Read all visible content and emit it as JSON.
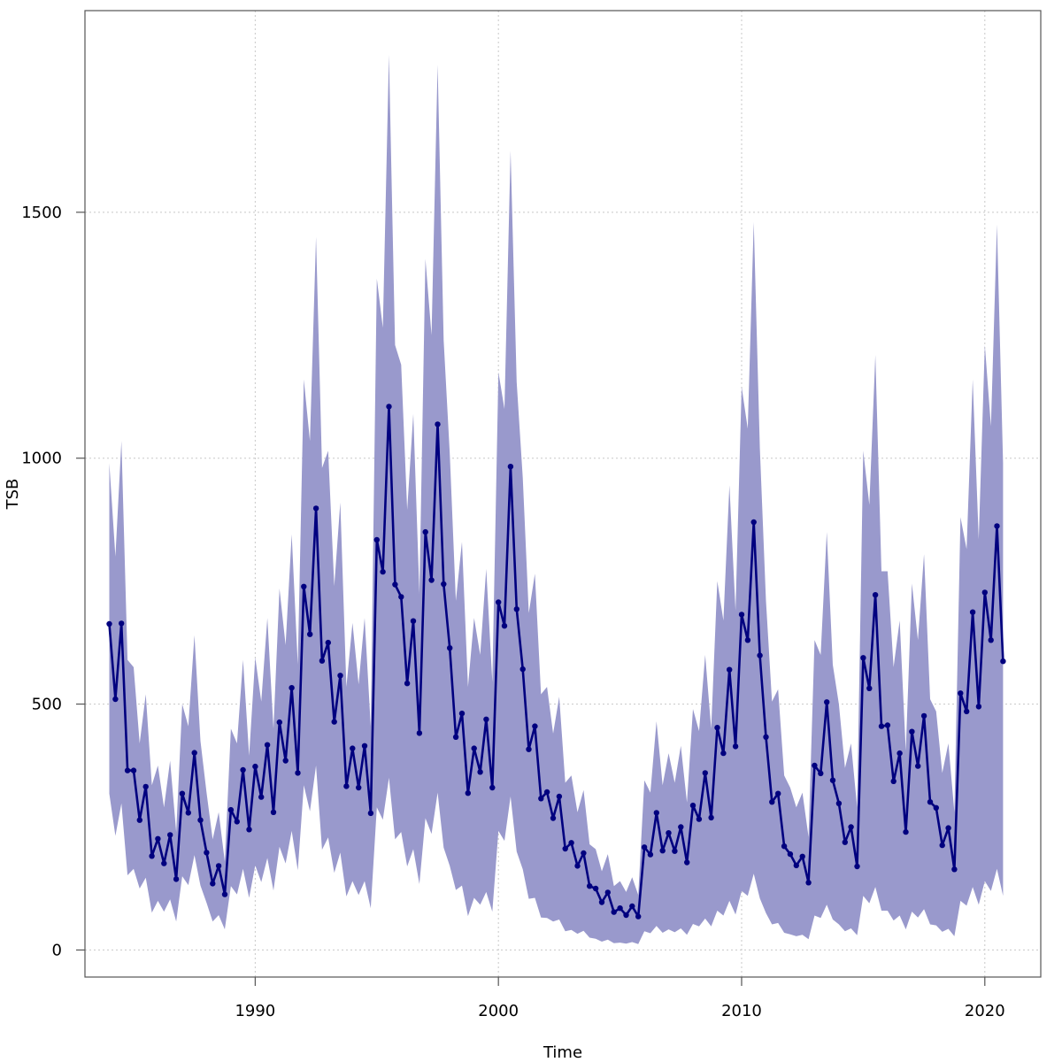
{
  "chart_data": {
    "type": "line",
    "xlabel": "Time",
    "ylabel": "TSB",
    "xlim": [
      1983.0,
      2022.3
    ],
    "ylim": [
      -55,
      1910
    ],
    "x_ticks": [
      1990,
      2000,
      2010,
      2020
    ],
    "y_ticks": [
      0,
      500,
      1000,
      1500
    ],
    "x_tick_labels": [
      "1990",
      "2000",
      "2010",
      "2020"
    ],
    "y_tick_labels": [
      "0",
      "500",
      "1000",
      "1500"
    ],
    "grid": true,
    "colors": {
      "line": "#00007f",
      "band": "#9999cc",
      "grid": "#c8c8c8",
      "axis": "#555555"
    },
    "series": [
      {
        "x": [
          1984.0,
          1984.25,
          1984.5,
          1984.75,
          1985.0,
          1985.25,
          1985.5,
          1985.75,
          1986.0,
          1986.25,
          1986.5,
          1986.75,
          1987.0,
          1987.25,
          1987.5,
          1987.75,
          1988.0,
          1988.25,
          1988.5,
          1988.75,
          1989.0,
          1989.25,
          1989.5,
          1989.75,
          1990.0,
          1990.25,
          1990.5,
          1990.75,
          1991.0,
          1991.25,
          1991.5,
          1991.75,
          1992.0,
          1992.25,
          1992.5,
          1992.75,
          1993.0,
          1993.25,
          1993.5,
          1993.75,
          1994.0,
          1994.25,
          1994.5,
          1994.75,
          1995.0,
          1995.25,
          1995.5,
          1995.75,
          1996.0,
          1996.25,
          1996.5,
          1996.75,
          1997.0,
          1997.25,
          1997.5,
          1997.75,
          1998.0,
          1998.25,
          1998.5,
          1998.75,
          1999.0,
          1999.25,
          1999.5,
          1999.75,
          2000.0,
          2000.25,
          2000.5,
          2000.75,
          2001.0,
          2001.25,
          2001.5,
          2001.75,
          2002.0,
          2002.25,
          2002.5,
          2002.75,
          2003.0,
          2003.25,
          2003.5,
          2003.75,
          2004.0,
          2004.25,
          2004.5,
          2004.75,
          2005.0,
          2005.25,
          2005.5,
          2005.75,
          2006.0,
          2006.25,
          2006.5,
          2006.75,
          2007.0,
          2007.25,
          2007.5,
          2007.75,
          2008.0,
          2008.25,
          2008.5,
          2008.75,
          2009.0,
          2009.25,
          2009.5,
          2009.75,
          2010.0,
          2010.25,
          2010.5,
          2010.75,
          2011.0,
          2011.25,
          2011.5,
          2011.75,
          2012.0,
          2012.25,
          2012.5,
          2012.75,
          2013.0,
          2013.25,
          2013.5,
          2013.75,
          2014.0,
          2014.25,
          2014.5,
          2014.75,
          2015.0,
          2015.25,
          2015.5,
          2015.75,
          2016.0,
          2016.25,
          2016.5,
          2016.75,
          2017.0,
          2017.25,
          2017.5,
          2017.75,
          2018.0,
          2018.25,
          2018.5,
          2018.75,
          2019.0,
          2019.25,
          2019.5,
          2019.75,
          2020.0,
          2020.25,
          2020.5,
          2020.75
        ],
        "y": [
          663,
          510,
          664,
          365,
          365,
          264,
          332,
          191,
          226,
          176,
          234,
          144,
          318,
          279,
          401,
          264,
          198,
          135,
          171,
          113,
          285,
          261,
          366,
          245,
          373,
          311,
          417,
          280,
          463,
          385,
          533,
          360,
          739,
          642,
          898,
          588,
          625,
          464,
          558,
          333,
          410,
          330,
          415,
          278,
          834,
          769,
          1105,
          743,
          718,
          542,
          669,
          441,
          850,
          752,
          1069,
          744,
          614,
          433,
          481,
          319,
          410,
          362,
          469,
          330,
          707,
          659,
          983,
          693,
          571,
          408,
          455,
          308,
          321,
          268,
          312,
          206,
          218,
          171,
          197,
          130,
          125,
          97,
          117,
          77,
          85,
          71,
          89,
          68,
          209,
          194,
          279,
          202,
          238,
          201,
          250,
          178,
          294,
          266,
          360,
          269,
          452,
          400,
          570,
          414,
          682,
          630,
          870,
          599,
          433,
          301,
          318,
          211,
          195,
          172,
          190,
          137,
          375,
          359,
          504,
          345,
          298,
          219,
          250,
          170,
          594,
          532,
          722,
          455,
          457,
          343,
          400,
          240,
          444,
          374,
          476,
          301,
          289,
          213,
          248,
          164,
          522,
          485,
          687,
          495,
          727,
          630,
          862,
          587
        ],
        "lower": [
          318,
          232,
          298,
          152,
          165,
          125,
          147,
          76,
          100,
          78,
          103,
          58,
          150,
          132,
          193,
          131,
          96,
          58,
          71,
          42,
          130,
          113,
          165,
          106,
          172,
          138,
          187,
          121,
          210,
          176,
          242,
          162,
          335,
          282,
          375,
          204,
          229,
          157,
          198,
          109,
          140,
          112,
          140,
          85,
          290,
          265,
          350,
          225,
          240,
          170,
          205,
          134,
          268,
          236,
          320,
          208,
          171,
          122,
          131,
          69,
          106,
          92,
          118,
          78,
          242,
          222,
          312,
          200,
          164,
          104,
          106,
          66,
          65,
          58,
          62,
          38,
          41,
          33,
          39,
          25,
          23,
          17,
          21,
          14,
          15,
          13,
          16,
          12,
          38,
          34,
          49,
          35,
          42,
          36,
          44,
          31,
          53,
          48,
          64,
          48,
          80,
          70,
          100,
          72,
          120,
          110,
          155,
          105,
          75,
          52,
          55,
          35,
          32,
          28,
          31,
          22,
          70,
          65,
          92,
          62,
          52,
          38,
          44,
          30,
          110,
          95,
          128,
          80,
          80,
          60,
          70,
          42,
          78,
          66,
          83,
          52,
          50,
          37,
          43,
          28,
          100,
          90,
          128,
          92,
          140,
          120,
          165,
          110
        ],
        "upper": [
          990,
          800,
          1035,
          590,
          575,
          420,
          520,
          335,
          375,
          290,
          385,
          240,
          500,
          455,
          640,
          425,
          320,
          225,
          280,
          180,
          450,
          420,
          590,
          395,
          595,
          505,
          675,
          450,
          735,
          620,
          845,
          580,
          1160,
          1035,
          1450,
          980,
          1015,
          740,
          910,
          535,
          665,
          540,
          675,
          455,
          1365,
          1265,
          1820,
          1230,
          1190,
          895,
          1090,
          725,
          1405,
          1250,
          1800,
          1240,
          1010,
          710,
          830,
          535,
          675,
          600,
          775,
          545,
          1175,
          1100,
          1625,
          1155,
          960,
          685,
          765,
          520,
          535,
          440,
          515,
          340,
          355,
          280,
          325,
          215,
          205,
          160,
          195,
          130,
          140,
          118,
          148,
          112,
          345,
          320,
          465,
          335,
          400,
          340,
          415,
          300,
          490,
          445,
          600,
          450,
          750,
          670,
          945,
          690,
          1145,
          1060,
          1480,
          1020,
          710,
          505,
          530,
          355,
          330,
          290,
          320,
          230,
          630,
          600,
          850,
          580,
          500,
          370,
          420,
          290,
          1015,
          905,
          1210,
          770,
          770,
          575,
          670,
          405,
          745,
          630,
          805,
          510,
          485,
          360,
          420,
          280,
          880,
          815,
          1160,
          835,
          1230,
          1065,
          1475,
          990
        ]
      }
    ]
  }
}
